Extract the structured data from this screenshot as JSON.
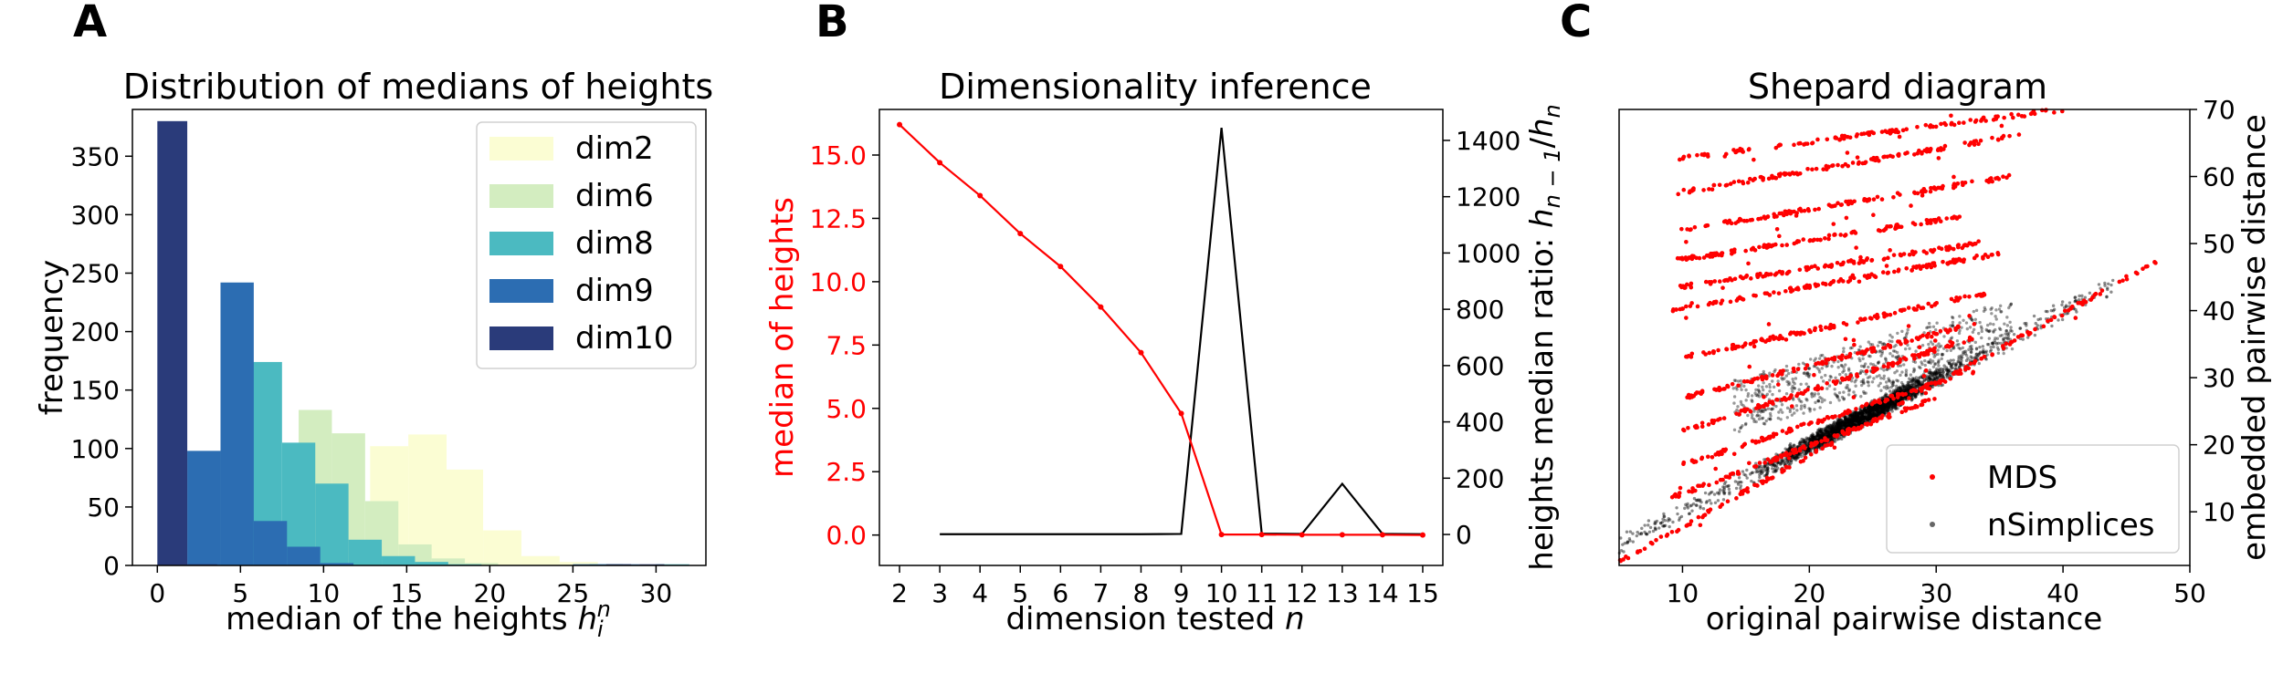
{
  "panels": {
    "A": {
      "letter": "A",
      "title": "Distribution of medians of heights",
      "xlabel_main": "median of the heights ",
      "xlabel_base": "h",
      "xlabel_sub": "i",
      "xlabel_sup": "n",
      "ylabel": "frequency"
    },
    "B": {
      "letter": "B",
      "title": "Dimensionality inference",
      "xlabel_main": "dimension tested ",
      "xlabel_var": "n",
      "ylabel_left": "median of heights",
      "ylabel_right_main": "heights median ratio: ",
      "ylabel_right_h1": "h",
      "ylabel_right_sub1": "n − 1",
      "ylabel_right_slash": "/",
      "ylabel_right_h2": "h",
      "ylabel_right_sub2": "n"
    },
    "C": {
      "letter": "C",
      "title": "Shepard diagram",
      "xlabel": "original pairwise distance",
      "ylabel": "embedded pairwise distance"
    }
  },
  "colors": {
    "dim2": "#fbfdd3",
    "dim6": "#d3edc0",
    "dim8": "#4bbac1",
    "dim9": "#2c6db2",
    "dim10": "#2a3b7a",
    "mds": "#ff0000",
    "nsimplices": "#000000",
    "median_line": "#ff0000",
    "ratio_line": "#000000"
  },
  "chart_data": [
    {
      "type": "bar",
      "panel": "A",
      "xlim": [
        -1.5,
        33
      ],
      "ylim": [
        0,
        390
      ],
      "xticks": [
        0,
        5,
        10,
        15,
        20,
        25,
        30
      ],
      "yticks": [
        0,
        50,
        100,
        150,
        200,
        250,
        300,
        350
      ],
      "legend_position": "top-right",
      "series": [
        {
          "name": "dim2",
          "bins": [
            [
              12.8,
              15.1,
              102
            ],
            [
              15.1,
              17.4,
              112
            ],
            [
              17.4,
              19.6,
              82
            ],
            [
              19.6,
              21.9,
              30
            ],
            [
              21.9,
              24.2,
              8
            ],
            [
              24.2,
              26.5,
              3
            ]
          ]
        },
        {
          "name": "dim6",
          "bins": [
            [
              8.5,
              10.5,
              133
            ],
            [
              10.5,
              12.5,
              113
            ],
            [
              12.5,
              14.5,
              55
            ],
            [
              14.5,
              16.5,
              18
            ],
            [
              16.5,
              18.5,
              6
            ],
            [
              18.5,
              20.5,
              2
            ]
          ]
        },
        {
          "name": "dim8",
          "bins": [
            [
              5.5,
              7.5,
              174
            ],
            [
              7.5,
              9.5,
              105
            ],
            [
              9.5,
              11.5,
              70
            ],
            [
              11.5,
              13.5,
              22
            ],
            [
              13.5,
              15.5,
              8
            ],
            [
              15.5,
              17.5,
              3
            ],
            [
              17.5,
              19.5,
              1
            ],
            [
              26,
              28,
              1
            ],
            [
              30,
              32,
              1
            ]
          ]
        },
        {
          "name": "dim9",
          "bins": [
            [
              1.8,
              3.8,
              98
            ],
            [
              3.8,
              5.8,
              242
            ],
            [
              5.8,
              7.8,
              38
            ],
            [
              7.8,
              9.8,
              16
            ],
            [
              9.8,
              11.8,
              2
            ],
            [
              25,
              27,
              1
            ],
            [
              27,
              29,
              1
            ]
          ]
        },
        {
          "name": "dim10",
          "bins": [
            [
              0.0,
              1.8,
              380
            ],
            [
              1.8,
              3.6,
              1
            ],
            [
              27,
              28.5,
              1
            ],
            [
              29,
              30.5,
              1
            ]
          ]
        }
      ]
    },
    {
      "type": "line",
      "panel": "B",
      "xlim": [
        1.5,
        15.5
      ],
      "ylim_left": [
        -1.2,
        16.8
      ],
      "ylim_right": [
        -110,
        1510
      ],
      "xticks": [
        2,
        3,
        4,
        5,
        6,
        7,
        8,
        9,
        10,
        11,
        12,
        13,
        14,
        15
      ],
      "yticks_left": [
        0.0,
        2.5,
        5.0,
        7.5,
        10.0,
        12.5,
        15.0
      ],
      "yticks_right": [
        0,
        200,
        400,
        600,
        800,
        1000,
        1200,
        1400
      ],
      "median": {
        "x": [
          2,
          3,
          4,
          5,
          6,
          7,
          8,
          9,
          10,
          11,
          12,
          13,
          14,
          15
        ],
        "y": [
          16.2,
          14.7,
          13.4,
          11.9,
          10.6,
          9.0,
          7.2,
          4.8,
          0.02,
          0.02,
          0.01,
          0.01,
          0.01,
          0.0
        ]
      },
      "ratio": {
        "x": [
          3,
          4,
          5,
          6,
          7,
          8,
          9,
          10,
          11,
          12,
          13,
          14,
          15
        ],
        "y": [
          1,
          1,
          1,
          1,
          1,
          1,
          2,
          1445,
          3,
          2,
          180,
          2,
          1
        ]
      }
    },
    {
      "type": "scatter",
      "panel": "C",
      "xlim": [
        5,
        50
      ],
      "ylim": [
        2,
        70
      ],
      "xticks": [
        10,
        20,
        30,
        40,
        50
      ],
      "yticks": [
        10,
        20,
        30,
        40,
        50,
        60,
        70
      ],
      "legend_position": "bottom-right",
      "series": [
        {
          "name": "MDS"
        },
        {
          "name": "nSimplices"
        }
      ],
      "mds_bands": [
        {
          "x0": 9.0,
          "x1": 40.0,
          "y0": 62.5,
          "y1": 70.0
        },
        {
          "x0": 9.5,
          "x1": 36.0,
          "y0": 57.5,
          "y1": 66.0
        },
        {
          "x0": 9.8,
          "x1": 36.0,
          "y0": 52.0,
          "y1": 60.0
        },
        {
          "x0": 9.5,
          "x1": 32.0,
          "y0": 47.5,
          "y1": 54.0
        },
        {
          "x0": 9.8,
          "x1": 33.5,
          "y0": 43.5,
          "y1": 50.0
        },
        {
          "x0": 9.0,
          "x1": 35.0,
          "y0": 40.0,
          "y1": 48.5
        },
        {
          "x0": 10.0,
          "x1": 35.0,
          "y0": 33.0,
          "y1": 43.0
        },
        {
          "x0": 10.0,
          "x1": 33.0,
          "y0": 27.0,
          "y1": 38.0
        },
        {
          "x0": 10.0,
          "x1": 33.0,
          "y0": 22.0,
          "y1": 36.0
        },
        {
          "x0": 10.0,
          "x1": 33.0,
          "y0": 17.0,
          "y1": 31.0
        },
        {
          "x0": 9.0,
          "x1": 30.0,
          "y0": 12.0,
          "y1": 27.0
        },
        {
          "x0": 5.0,
          "x1": 47.5,
          "y0": 2.5,
          "y1": 47.5
        }
      ],
      "nsimplices_cloud": {
        "diagonal_x_range": [
          5,
          44
        ],
        "cluster_x_range": [
          14,
          36
        ],
        "cluster_y_range": [
          28,
          47
        ]
      }
    }
  ]
}
